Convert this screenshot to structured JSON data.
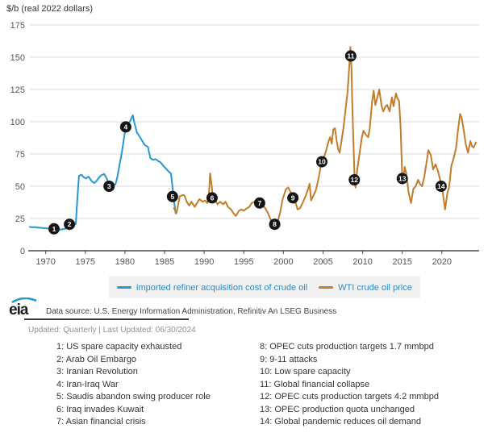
{
  "chart_data": {
    "type": "line",
    "title": "$/b (real 2022 dollars)",
    "xlabel": "",
    "ylabel": "$/b (real 2022 dollars)",
    "xlim": [
      1968,
      2024.7
    ],
    "ylim": [
      0,
      175
    ],
    "y_ticks": [
      0,
      25,
      50,
      75,
      100,
      125,
      150,
      175
    ],
    "x_ticks": [
      1970,
      1975,
      1980,
      1985,
      1990,
      1995,
      2000,
      2005,
      2010,
      2015,
      2020
    ],
    "grid": true,
    "legend_position": "bottom",
    "series": [
      {
        "name": "imported refiner acquisition cost of crude oil",
        "color": "#2697d3",
        "points": [
          [
            1968.0,
            18.5
          ],
          [
            1968.3,
            18.2
          ],
          [
            1968.6,
            18.4
          ],
          [
            1969.0,
            18.0
          ],
          [
            1969.4,
            17.8
          ],
          [
            1969.8,
            17.5
          ],
          [
            1970.2,
            17.3
          ],
          [
            1970.6,
            17.1
          ],
          [
            1971.0,
            17.0
          ],
          [
            1971.4,
            16.6
          ],
          [
            1971.8,
            16.4
          ],
          [
            1972.2,
            16.7
          ],
          [
            1972.6,
            17.3
          ],
          [
            1972.9,
            19.3
          ],
          [
            1973.2,
            19.0
          ],
          [
            1973.5,
            19.6
          ],
          [
            1973.8,
            21.0
          ],
          [
            1974.0,
            40.0
          ],
          [
            1974.2,
            58.0
          ],
          [
            1974.5,
            59.0
          ],
          [
            1974.8,
            57.0
          ],
          [
            1975.1,
            56.0
          ],
          [
            1975.4,
            57.5
          ],
          [
            1975.8,
            54.0
          ],
          [
            1976.1,
            52.5
          ],
          [
            1976.4,
            54.0
          ],
          [
            1976.7,
            56.5
          ],
          [
            1977.0,
            58.5
          ],
          [
            1977.4,
            59.5
          ],
          [
            1977.7,
            56.0
          ],
          [
            1978.0,
            52.0
          ],
          [
            1978.4,
            51.0
          ],
          [
            1978.8,
            51.5
          ],
          [
            1979.0,
            56.0
          ],
          [
            1979.3,
            66.0
          ],
          [
            1979.6,
            76.0
          ],
          [
            1979.9,
            88.0
          ],
          [
            1980.1,
            96.0
          ],
          [
            1980.4,
            98.0
          ],
          [
            1980.7,
            101.0
          ],
          [
            1981.0,
            105.0
          ],
          [
            1981.2,
            99.0
          ],
          [
            1981.5,
            92.0
          ],
          [
            1981.8,
            89.0
          ],
          [
            1982.2,
            85.0
          ],
          [
            1982.5,
            82.0
          ],
          [
            1982.9,
            80.5
          ],
          [
            1983.2,
            72.0
          ],
          [
            1983.5,
            70.5
          ],
          [
            1983.9,
            71.0
          ],
          [
            1984.2,
            69.5
          ],
          [
            1984.5,
            68.5
          ],
          [
            1984.9,
            65.5
          ],
          [
            1985.2,
            63.5
          ],
          [
            1985.5,
            61.5
          ],
          [
            1985.8,
            60.0
          ],
          [
            1986.0,
            50.0
          ],
          [
            1986.2,
            38.0
          ],
          [
            1986.4,
            29.0
          ]
        ]
      },
      {
        "name": "WTI crude oil price",
        "color": "#c17d2b",
        "points": [
          [
            1986.2,
            33
          ],
          [
            1986.5,
            29
          ],
          [
            1986.7,
            35
          ],
          [
            1986.9,
            42
          ],
          [
            1987.2,
            43
          ],
          [
            1987.5,
            43
          ],
          [
            1987.8,
            38
          ],
          [
            1988.1,
            35
          ],
          [
            1988.4,
            38
          ],
          [
            1988.8,
            34
          ],
          [
            1989.1,
            37
          ],
          [
            1989.4,
            40
          ],
          [
            1989.8,
            38
          ],
          [
            1990.1,
            39
          ],
          [
            1990.4,
            37
          ],
          [
            1990.6,
            44
          ],
          [
            1990.75,
            60
          ],
          [
            1991.0,
            48
          ],
          [
            1991.1,
            40
          ],
          [
            1991.4,
            39
          ],
          [
            1991.7,
            36
          ],
          [
            1992.0,
            38
          ],
          [
            1992.4,
            36
          ],
          [
            1992.7,
            38
          ],
          [
            1993.0,
            34
          ],
          [
            1993.4,
            32
          ],
          [
            1993.7,
            29
          ],
          [
            1994.0,
            27
          ],
          [
            1994.4,
            31
          ],
          [
            1994.7,
            32
          ],
          [
            1995.0,
            31
          ],
          [
            1995.4,
            33
          ],
          [
            1995.7,
            34
          ],
          [
            1996.0,
            37
          ],
          [
            1996.4,
            38
          ],
          [
            1996.7,
            36
          ],
          [
            1997.0,
            37
          ],
          [
            1997.4,
            35
          ],
          [
            1997.7,
            33
          ],
          [
            1998.0,
            30
          ],
          [
            1998.4,
            24
          ],
          [
            1998.9,
            20.5
          ],
          [
            1999.1,
            18
          ],
          [
            1999.6,
            30
          ],
          [
            1999.9,
            40
          ],
          [
            2000.3,
            47.5
          ],
          [
            2000.6,
            49
          ],
          [
            2000.9,
            45.5
          ],
          [
            2001.2,
            41
          ],
          [
            2001.5,
            38
          ],
          [
            2001.8,
            32
          ],
          [
            2002.1,
            33
          ],
          [
            2002.5,
            38
          ],
          [
            2002.8,
            42.5
          ],
          [
            2003.1,
            47.5
          ],
          [
            2003.3,
            52
          ],
          [
            2003.5,
            39
          ],
          [
            2003.8,
            43
          ],
          [
            2004.1,
            47
          ],
          [
            2004.4,
            55
          ],
          [
            2004.7,
            65
          ],
          [
            2004.9,
            69
          ],
          [
            2005.1,
            72
          ],
          [
            2005.4,
            78
          ],
          [
            2005.7,
            85
          ],
          [
            2005.9,
            88
          ],
          [
            2006.1,
            83
          ],
          [
            2006.3,
            94
          ],
          [
            2006.5,
            95
          ],
          [
            2006.7,
            86
          ],
          [
            2006.9,
            79
          ],
          [
            2007.1,
            76
          ],
          [
            2007.3,
            84
          ],
          [
            2007.6,
            96
          ],
          [
            2007.9,
            113
          ],
          [
            2008.1,
            123
          ],
          [
            2008.3,
            142
          ],
          [
            2008.45,
            158
          ],
          [
            2008.6,
            140
          ],
          [
            2008.7,
            113
          ],
          [
            2008.85,
            82
          ],
          [
            2009.0,
            52
          ],
          [
            2009.1,
            49
          ],
          [
            2009.3,
            62
          ],
          [
            2009.6,
            75
          ],
          [
            2009.9,
            88
          ],
          [
            2010.1,
            93
          ],
          [
            2010.4,
            90
          ],
          [
            2010.7,
            88
          ],
          [
            2010.9,
            95
          ],
          [
            2011.2,
            116
          ],
          [
            2011.4,
            124
          ],
          [
            2011.6,
            113
          ],
          [
            2011.9,
            120
          ],
          [
            2012.1,
            125
          ],
          [
            2012.4,
            112
          ],
          [
            2012.6,
            108
          ],
          [
            2012.9,
            112
          ],
          [
            2013.1,
            113
          ],
          [
            2013.4,
            108
          ],
          [
            2013.7,
            119
          ],
          [
            2013.9,
            112
          ],
          [
            2014.2,
            122
          ],
          [
            2014.4,
            118
          ],
          [
            2014.6,
            116
          ],
          [
            2014.8,
            95
          ],
          [
            2015.0,
            56
          ],
          [
            2015.1,
            52
          ],
          [
            2015.3,
            65
          ],
          [
            2015.5,
            60
          ],
          [
            2015.8,
            45
          ],
          [
            2016.1,
            37
          ],
          [
            2016.4,
            48
          ],
          [
            2016.7,
            50
          ],
          [
            2017.0,
            55
          ],
          [
            2017.2,
            52
          ],
          [
            2017.5,
            50
          ],
          [
            2017.8,
            58
          ],
          [
            2018.0,
            66
          ],
          [
            2018.3,
            78
          ],
          [
            2018.6,
            74
          ],
          [
            2018.9,
            63
          ],
          [
            2019.2,
            67
          ],
          [
            2019.5,
            62
          ],
          [
            2019.9,
            52
          ],
          [
            2020.1,
            46
          ],
          [
            2020.4,
            32
          ],
          [
            2020.7,
            45
          ],
          [
            2020.9,
            49
          ],
          [
            2021.2,
            66
          ],
          [
            2021.5,
            72
          ],
          [
            2021.8,
            80
          ],
          [
            2022.0,
            92
          ],
          [
            2022.3,
            106
          ],
          [
            2022.5,
            103
          ],
          [
            2022.8,
            92
          ],
          [
            2023.0,
            83
          ],
          [
            2023.3,
            76
          ],
          [
            2023.6,
            85
          ],
          [
            2023.8,
            81
          ],
          [
            2024.0,
            80
          ],
          [
            2024.3,
            84
          ]
        ]
      }
    ],
    "event_markers": [
      {
        "n": 1,
        "year": 1971.05,
        "value": 17,
        "label": "US spare capacity exhausted"
      },
      {
        "n": 2,
        "year": 1973.0,
        "value": 20.5,
        "label": "Arab Oil Embargo"
      },
      {
        "n": 3,
        "year": 1978.0,
        "value": 50,
        "label": "Iranian Revolution"
      },
      {
        "n": 4,
        "year": 1980.1,
        "value": 96,
        "label": "Iran-Iraq War"
      },
      {
        "n": 5,
        "year": 1986.0,
        "value": 42,
        "label": "Saudis abandon swing producer role"
      },
      {
        "n": 6,
        "year": 1991.0,
        "value": 41,
        "label": "Iraq invades Kuwait"
      },
      {
        "n": 7,
        "year": 1997.0,
        "value": 37,
        "label": "Asian financial crisis"
      },
      {
        "n": 8,
        "year": 1998.9,
        "value": 20.5,
        "label": "OPEC cuts production targets 1.7 mmbpd"
      },
      {
        "n": 9,
        "year": 2001.2,
        "value": 41,
        "label": "9-11 attacks"
      },
      {
        "n": 10,
        "year": 2004.85,
        "value": 69,
        "label": "Low spare capacity"
      },
      {
        "n": 11,
        "year": 2008.5,
        "value": 151,
        "label": "Global financial collapse"
      },
      {
        "n": 12,
        "year": 2008.95,
        "value": 55,
        "label": "OPEC cuts production targets 4.2 mmbpd"
      },
      {
        "n": 13,
        "year": 2015.0,
        "value": 56,
        "label": "OPEC production quota unchanged"
      },
      {
        "n": 14,
        "year": 2019.9,
        "value": 50,
        "label": "Global pandemic reduces oil demand"
      }
    ]
  },
  "legend": {
    "items": [
      {
        "label": "imported refiner acquisition cost of crude oil",
        "color": "#2697d3"
      },
      {
        "label": "WTI crude oil price",
        "color": "#c17d2b"
      }
    ]
  },
  "footer": {
    "logo_text": "eia",
    "data_source": "Data source: U.S. Energy Information Administration, Refinitiv An LSEG Business",
    "updated": "Updated: Quarterly | Last Updated: 06/30/2024"
  },
  "annotations": {
    "column1": [
      "1: US spare capacity exhausted",
      "2: Arab Oil Embargo",
      "3: Iranian Revolution",
      "4: Iran-Iraq War",
      "5: Saudis abandon swing producer role",
      "6: Iraq invades Kuwait",
      "7: Asian financial crisis"
    ],
    "column2": [
      "8: OPEC cuts production targets 1.7 mmbpd",
      "9: 9-11 attacks",
      "10: Low spare capacity",
      "11: Global financial collapse",
      "12: OPEC cuts production targets 4.2 mmbpd",
      "13: OPEC production quota unchanged",
      "14: Global pandemic reduces oil demand"
    ]
  }
}
